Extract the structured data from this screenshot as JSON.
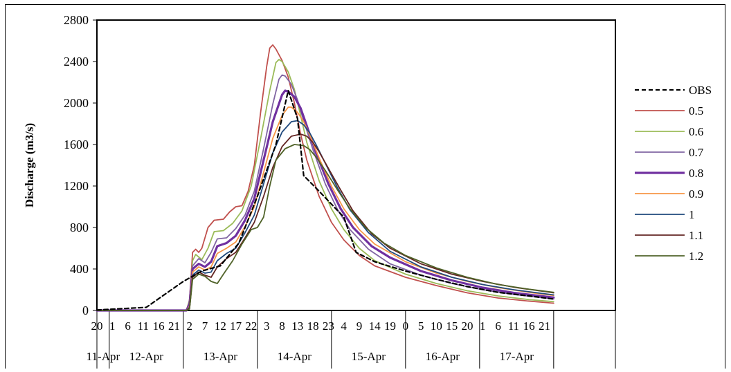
{
  "chart_data": {
    "type": "line",
    "title": "",
    "ylabel": "Discharge (m3/s)",
    "xlabel": "",
    "ylim": [
      0,
      2800
    ],
    "yticks": [
      0,
      400,
      800,
      1200,
      1600,
      2000,
      2400,
      2800
    ],
    "xlim_hours": [
      20,
      188
    ],
    "x_unit": "hour",
    "day_groups": [
      {
        "label": "11-Apr",
        "start": 20,
        "end": 24
      },
      {
        "label": "12-Apr",
        "start": 24,
        "end": 48
      },
      {
        "label": "13-Apr",
        "start": 48,
        "end": 72
      },
      {
        "label": "14-Apr",
        "start": 72,
        "end": 96
      },
      {
        "label": "15-Apr",
        "start": 96,
        "end": 120
      },
      {
        "label": "16-Apr",
        "start": 120,
        "end": 144
      },
      {
        "label": "17-Apr",
        "start": 144,
        "end": 168
      }
    ],
    "hour_ticks": [
      {
        "x": 20,
        "label": "20"
      },
      {
        "x": 25,
        "label": "1"
      },
      {
        "x": 30,
        "label": "6"
      },
      {
        "x": 35,
        "label": "11"
      },
      {
        "x": 40,
        "label": "16"
      },
      {
        "x": 45,
        "label": "21"
      },
      {
        "x": 50,
        "label": "2"
      },
      {
        "x": 55,
        "label": "7"
      },
      {
        "x": 60,
        "label": "12"
      },
      {
        "x": 65,
        "label": "17"
      },
      {
        "x": 70,
        "label": "22"
      },
      {
        "x": 75,
        "label": "3"
      },
      {
        "x": 80,
        "label": "8"
      },
      {
        "x": 85,
        "label": "13"
      },
      {
        "x": 90,
        "label": "18"
      },
      {
        "x": 95,
        "label": "23"
      },
      {
        "x": 100,
        "label": "4"
      },
      {
        "x": 105,
        "label": "9"
      },
      {
        "x": 110,
        "label": "14"
      },
      {
        "x": 115,
        "label": "19"
      },
      {
        "x": 120,
        "label": "0"
      },
      {
        "x": 125,
        "label": "5"
      },
      {
        "x": 130,
        "label": "10"
      },
      {
        "x": 135,
        "label": "15"
      },
      {
        "x": 140,
        "label": "20"
      },
      {
        "x": 145,
        "label": "1"
      },
      {
        "x": 150,
        "label": "6"
      },
      {
        "x": 155,
        "label": "11"
      },
      {
        "x": 160,
        "label": "16"
      },
      {
        "x": 165,
        "label": "21"
      }
    ],
    "legend_position": "right",
    "grid": false,
    "series": [
      {
        "name": "OBS",
        "color": "#000000",
        "dash": "6,4",
        "width": 2.2,
        "points": [
          [
            20,
            5
          ],
          [
            36,
            30
          ],
          [
            48,
            280
          ],
          [
            54,
            380
          ],
          [
            60,
            430
          ],
          [
            66,
            650
          ],
          [
            72,
            1100
          ],
          [
            78,
            1600
          ],
          [
            82,
            2120
          ],
          [
            85,
            1850
          ],
          [
            87,
            1300
          ],
          [
            92,
            1150
          ],
          [
            100,
            900
          ],
          [
            104,
            560
          ],
          [
            110,
            470
          ],
          [
            120,
            380
          ],
          [
            130,
            300
          ],
          [
            140,
            230
          ],
          [
            150,
            175
          ],
          [
            160,
            140
          ],
          [
            168,
            110
          ]
        ]
      },
      {
        "name": "0.5",
        "color": "#c0504d",
        "width": 1.8,
        "points": [
          [
            20,
            0
          ],
          [
            49,
            0
          ],
          [
            50,
            100
          ],
          [
            51,
            560
          ],
          [
            52,
            590
          ],
          [
            53,
            560
          ],
          [
            54,
            600
          ],
          [
            56,
            800
          ],
          [
            58,
            870
          ],
          [
            61,
            880
          ],
          [
            63,
            950
          ],
          [
            65,
            1000
          ],
          [
            67,
            1010
          ],
          [
            69,
            1150
          ],
          [
            71,
            1400
          ],
          [
            73,
            1900
          ],
          [
            75,
            2350
          ],
          [
            76,
            2530
          ],
          [
            77,
            2560
          ],
          [
            78,
            2520
          ],
          [
            80,
            2410
          ],
          [
            82,
            2250
          ],
          [
            84,
            2000
          ],
          [
            86,
            1700
          ],
          [
            88,
            1450
          ],
          [
            92,
            1100
          ],
          [
            96,
            850
          ],
          [
            100,
            680
          ],
          [
            105,
            530
          ],
          [
            110,
            430
          ],
          [
            120,
            320
          ],
          [
            130,
            240
          ],
          [
            140,
            170
          ],
          [
            150,
            120
          ],
          [
            160,
            90
          ],
          [
            168,
            70
          ]
        ]
      },
      {
        "name": "0.6",
        "color": "#9bbb59",
        "width": 1.8,
        "points": [
          [
            20,
            0
          ],
          [
            49,
            0
          ],
          [
            50,
            100
          ],
          [
            51,
            480
          ],
          [
            52,
            540
          ],
          [
            54,
            490
          ],
          [
            56,
            600
          ],
          [
            58,
            760
          ],
          [
            61,
            770
          ],
          [
            64,
            840
          ],
          [
            67,
            960
          ],
          [
            70,
            1200
          ],
          [
            73,
            1650
          ],
          [
            76,
            2120
          ],
          [
            78,
            2390
          ],
          [
            79,
            2420
          ],
          [
            80,
            2400
          ],
          [
            82,
            2300
          ],
          [
            84,
            2130
          ],
          [
            86,
            1880
          ],
          [
            88,
            1620
          ],
          [
            92,
            1250
          ],
          [
            96,
            980
          ],
          [
            100,
            780
          ],
          [
            105,
            600
          ],
          [
            110,
            480
          ],
          [
            120,
            350
          ],
          [
            130,
            260
          ],
          [
            140,
            190
          ],
          [
            150,
            140
          ],
          [
            160,
            105
          ],
          [
            168,
            85
          ]
        ]
      },
      {
        "name": "0.7",
        "color": "#8064a2",
        "width": 1.8,
        "points": [
          [
            20,
            0
          ],
          [
            49,
            0
          ],
          [
            50,
            80
          ],
          [
            51,
            430
          ],
          [
            53,
            500
          ],
          [
            55,
            460
          ],
          [
            57,
            560
          ],
          [
            59,
            690
          ],
          [
            62,
            700
          ],
          [
            65,
            790
          ],
          [
            68,
            920
          ],
          [
            71,
            1150
          ],
          [
            74,
            1560
          ],
          [
            77,
            1990
          ],
          [
            79,
            2230
          ],
          [
            80,
            2270
          ],
          [
            81,
            2260
          ],
          [
            83,
            2180
          ],
          [
            85,
            2030
          ],
          [
            87,
            1830
          ],
          [
            90,
            1550
          ],
          [
            94,
            1220
          ],
          [
            98,
            970
          ],
          [
            102,
            780
          ],
          [
            108,
            590
          ],
          [
            115,
            450
          ],
          [
            125,
            340
          ],
          [
            135,
            260
          ],
          [
            145,
            200
          ],
          [
            155,
            155
          ],
          [
            168,
            110
          ]
        ]
      },
      {
        "name": "0.8",
        "color": "#7030a0",
        "width": 3.2,
        "points": [
          [
            20,
            0
          ],
          [
            49,
            0
          ],
          [
            50,
            60
          ],
          [
            51,
            400
          ],
          [
            53,
            450
          ],
          [
            55,
            420
          ],
          [
            57,
            470
          ],
          [
            59,
            620
          ],
          [
            62,
            650
          ],
          [
            65,
            720
          ],
          [
            68,
            870
          ],
          [
            71,
            1080
          ],
          [
            74,
            1450
          ],
          [
            77,
            1820
          ],
          [
            80,
            2080
          ],
          [
            81,
            2120
          ],
          [
            82,
            2110
          ],
          [
            84,
            2060
          ],
          [
            86,
            1950
          ],
          [
            88,
            1780
          ],
          [
            91,
            1520
          ],
          [
            95,
            1220
          ],
          [
            99,
            980
          ],
          [
            103,
            800
          ],
          [
            109,
            620
          ],
          [
            115,
            510
          ],
          [
            125,
            380
          ],
          [
            135,
            290
          ],
          [
            145,
            220
          ],
          [
            155,
            170
          ],
          [
            168,
            125
          ]
        ]
      },
      {
        "name": "0.9",
        "color": "#f79646",
        "width": 1.8,
        "points": [
          [
            20,
            0
          ],
          [
            49,
            0
          ],
          [
            50,
            40
          ],
          [
            51,
            370
          ],
          [
            53,
            420
          ],
          [
            55,
            390
          ],
          [
            57,
            420
          ],
          [
            59,
            550
          ],
          [
            62,
            600
          ],
          [
            65,
            660
          ],
          [
            68,
            810
          ],
          [
            71,
            1000
          ],
          [
            74,
            1330
          ],
          [
            77,
            1660
          ],
          [
            80,
            1880
          ],
          [
            82,
            1960
          ],
          [
            83,
            1960
          ],
          [
            85,
            1910
          ],
          [
            87,
            1820
          ],
          [
            89,
            1690
          ],
          [
            92,
            1470
          ],
          [
            96,
            1200
          ],
          [
            100,
            980
          ],
          [
            105,
            780
          ],
          [
            110,
            640
          ],
          [
            120,
            470
          ],
          [
            130,
            360
          ],
          [
            140,
            280
          ],
          [
            150,
            220
          ],
          [
            160,
            175
          ],
          [
            168,
            145
          ]
        ]
      },
      {
        "name": "1",
        "color": "#1f497d",
        "width": 1.8,
        "points": [
          [
            20,
            0
          ],
          [
            49,
            0
          ],
          [
            50,
            30
          ],
          [
            51,
            340
          ],
          [
            53,
            390
          ],
          [
            55,
            360
          ],
          [
            57,
            370
          ],
          [
            59,
            480
          ],
          [
            62,
            550
          ],
          [
            65,
            600
          ],
          [
            68,
            750
          ],
          [
            71,
            920
          ],
          [
            74,
            1220
          ],
          [
            77,
            1520
          ],
          [
            80,
            1720
          ],
          [
            83,
            1820
          ],
          [
            85,
            1830
          ],
          [
            87,
            1790
          ],
          [
            89,
            1710
          ],
          [
            91,
            1600
          ],
          [
            94,
            1420
          ],
          [
            98,
            1180
          ],
          [
            102,
            970
          ],
          [
            108,
            750
          ],
          [
            115,
            570
          ],
          [
            125,
            420
          ],
          [
            135,
            320
          ],
          [
            145,
            250
          ],
          [
            155,
            200
          ],
          [
            168,
            150
          ]
        ]
      },
      {
        "name": "1.1",
        "color": "#632523",
        "width": 1.8,
        "points": [
          [
            20,
            0
          ],
          [
            49,
            0
          ],
          [
            50,
            20
          ],
          [
            51,
            320
          ],
          [
            53,
            370
          ],
          [
            55,
            340
          ],
          [
            57,
            320
          ],
          [
            59,
            420
          ],
          [
            62,
            500
          ],
          [
            65,
            560
          ],
          [
            68,
            700
          ],
          [
            71,
            850
          ],
          [
            74,
            1100
          ],
          [
            77,
            1380
          ],
          [
            80,
            1580
          ],
          [
            83,
            1680
          ],
          [
            86,
            1700
          ],
          [
            88,
            1680
          ],
          [
            90,
            1620
          ],
          [
            92,
            1530
          ],
          [
            95,
            1370
          ],
          [
            99,
            1160
          ],
          [
            103,
            960
          ],
          [
            109,
            740
          ],
          [
            115,
            600
          ],
          [
            125,
            450
          ],
          [
            135,
            350
          ],
          [
            145,
            280
          ],
          [
            155,
            225
          ],
          [
            168,
            170
          ]
        ]
      },
      {
        "name": "1.2",
        "color": "#4f6228",
        "width": 1.8,
        "points": [
          [
            20,
            0
          ],
          [
            49,
            0
          ],
          [
            50,
            15
          ],
          [
            51,
            300
          ],
          [
            53,
            350
          ],
          [
            55,
            330
          ],
          [
            57,
            280
          ],
          [
            59,
            260
          ],
          [
            61,
            350
          ],
          [
            64,
            480
          ],
          [
            67,
            640
          ],
          [
            70,
            780
          ],
          [
            72,
            800
          ],
          [
            74,
            900
          ],
          [
            76,
            1200
          ],
          [
            78,
            1450
          ],
          [
            81,
            1560
          ],
          [
            84,
            1600
          ],
          [
            87,
            1590
          ],
          [
            89,
            1550
          ],
          [
            91,
            1480
          ],
          [
            94,
            1350
          ],
          [
            98,
            1160
          ],
          [
            102,
            980
          ],
          [
            107,
            800
          ],
          [
            113,
            650
          ],
          [
            120,
            530
          ],
          [
            130,
            410
          ],
          [
            140,
            320
          ],
          [
            150,
            250
          ],
          [
            160,
            205
          ],
          [
            168,
            175
          ]
        ]
      }
    ]
  }
}
